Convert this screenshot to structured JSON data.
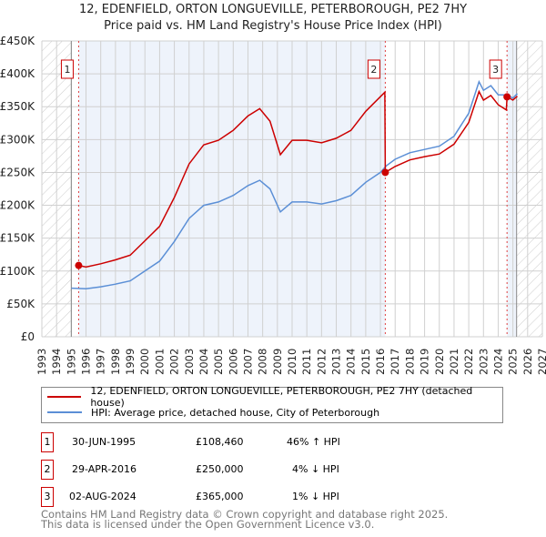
{
  "chart_data": {
    "type": "line",
    "title": "12, EDENFIELD, ORTON LONGUEVILLE, PETERBOROUGH, PE2 7HY",
    "subtitle": "Price paid vs. HM Land Registry's House Price Index (HPI)",
    "xlim": [
      1993,
      2027
    ],
    "ylim": [
      0,
      450000
    ],
    "y_ticks": [
      {
        "v": 0,
        "label": "£0"
      },
      {
        "v": 50000,
        "label": "£50K"
      },
      {
        "v": 100000,
        "label": "£100K"
      },
      {
        "v": 150000,
        "label": "£150K"
      },
      {
        "v": 200000,
        "label": "£200K"
      },
      {
        "v": 250000,
        "label": "£250K"
      },
      {
        "v": 300000,
        "label": "£300K"
      },
      {
        "v": 350000,
        "label": "£350K"
      },
      {
        "v": 400000,
        "label": "£400K"
      },
      {
        "v": 450000,
        "label": "£450K"
      }
    ],
    "x_ticks": [
      "1993",
      "1994",
      "1995",
      "1996",
      "1997",
      "1998",
      "1999",
      "2000",
      "2001",
      "2002",
      "2003",
      "2004",
      "2005",
      "2006",
      "2007",
      "2008",
      "2009",
      "2010",
      "2011",
      "2012",
      "2013",
      "2014",
      "2015",
      "2016",
      "2017",
      "2018",
      "2019",
      "2020",
      "2021",
      "2022",
      "2023",
      "2024",
      "2025",
      "2026",
      "2027"
    ],
    "grid": true,
    "hatched_before": 1995.0,
    "hatched_after": 2025.25,
    "series": [
      {
        "name": "12, EDENFIELD, ORTON LONGUEVILLE, PETERBOROUGH, PE2 7HY (detached house)",
        "color": "#cc0000",
        "x": [
          1995.5,
          1996,
          1997,
          1998,
          1999,
          2000,
          2001,
          2002,
          2003,
          2004,
          2005,
          2006,
          2007,
          2007.8,
          2008.5,
          2009.2,
          2010,
          2011,
          2012,
          2013,
          2014,
          2015,
          2016.3,
          2016.33,
          2017,
          2018,
          2019,
          2020,
          2021,
          2022,
          2022.7,
          2023,
          2023.5,
          2024,
          2024.55,
          2024.6,
          2025,
          2025.3
        ],
        "y": [
          108460,
          106000,
          111000,
          117000,
          124000,
          146000,
          168000,
          212000,
          263000,
          292000,
          299000,
          314000,
          336000,
          347000,
          328000,
          277000,
          299000,
          299000,
          295000,
          302000,
          314000,
          343000,
          372000,
          250000,
          259000,
          269000,
          274000,
          278000,
          293000,
          326000,
          373000,
          360000,
          367000,
          353000,
          345000,
          365000,
          360000,
          366000
        ]
      },
      {
        "name": "HPI: Average price, detached house, City of Peterborough",
        "color": "#5b8fd6",
        "x": [
          1995,
          1996,
          1997,
          1998,
          1999,
          2000,
          2001,
          2002,
          2003,
          2004,
          2005,
          2006,
          2007,
          2007.8,
          2008.5,
          2009.2,
          2010,
          2011,
          2012,
          2013,
          2014,
          2015,
          2016,
          2016.4,
          2017,
          2018,
          2019,
          2020,
          2021,
          2022,
          2022.7,
          2023,
          2023.5,
          2024,
          2024.6,
          2025,
          2025.3
        ],
        "y": [
          74000,
          73000,
          76000,
          80000,
          85000,
          100000,
          115000,
          145000,
          180000,
          200000,
          205000,
          215000,
          230000,
          238000,
          225000,
          190000,
          205000,
          205000,
          202000,
          207000,
          215000,
          235000,
          250000,
          260000,
          270000,
          280000,
          285000,
          290000,
          305000,
          340000,
          388000,
          375000,
          382000,
          368000,
          368000,
          363000,
          370000
        ]
      }
    ],
    "sales": [
      {
        "id": "1",
        "x": 1995.5,
        "y": 108460,
        "date": "30-JUN-1995",
        "price": "£108,460",
        "hpi": "46% ↑ HPI"
      },
      {
        "id": "2",
        "x": 2016.33,
        "y": 250000,
        "date": "29-APR-2016",
        "price": "£250,000",
        "hpi": "4% ↓ HPI"
      },
      {
        "id": "3",
        "x": 2024.6,
        "y": 365000,
        "date": "02-AUG-2024",
        "price": "£365,000",
        "hpi": "1% ↓ HPI"
      }
    ]
  },
  "footer": {
    "line1": "Contains HM Land Registry data © Crown copyright and database right 2025.",
    "line2": "This data is licensed under the Open Government Licence v3.0."
  }
}
